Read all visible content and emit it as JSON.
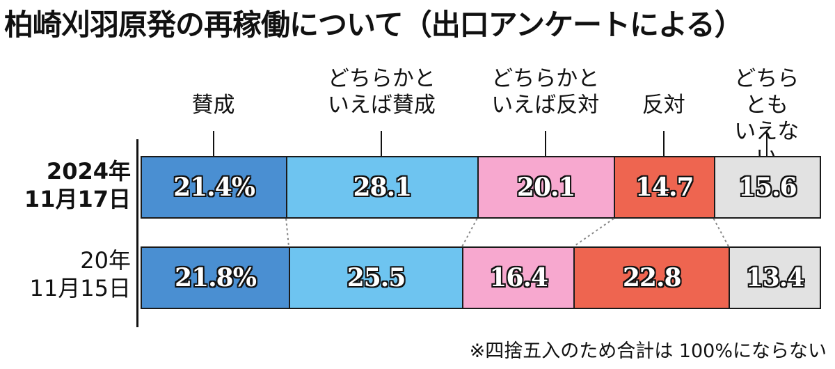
{
  "chart_data": {
    "type": "bar",
    "orientation": "horizontal-stacked-100",
    "title": "柏崎刈羽原発の再稼働について（出口アンケートによる）",
    "categories": [
      "賛成",
      "どちらかと\nいえば賛成",
      "どちらかと\nいえば反対",
      "反対",
      "どちらとも\nいえない"
    ],
    "category_colors": [
      "#4a8fd2",
      "#6ec4f0",
      "#f7a8cf",
      "#ee6550",
      "#e2e2e2"
    ],
    "series": [
      {
        "name": "2024年\n11月17日",
        "values": [
          21.4,
          28.1,
          20.1,
          14.7,
          15.6
        ],
        "labels": [
          "21.4%",
          "28.1",
          "20.1",
          "14.7",
          "15.6"
        ]
      },
      {
        "name": "20年\n11月15日",
        "values": [
          21.8,
          25.5,
          16.4,
          22.8,
          13.4
        ],
        "labels": [
          "21.8%",
          "25.5",
          "16.4",
          "22.8",
          "13.4"
        ]
      }
    ],
    "footnote": "※四捨五入のため合計は 100%にならない"
  }
}
